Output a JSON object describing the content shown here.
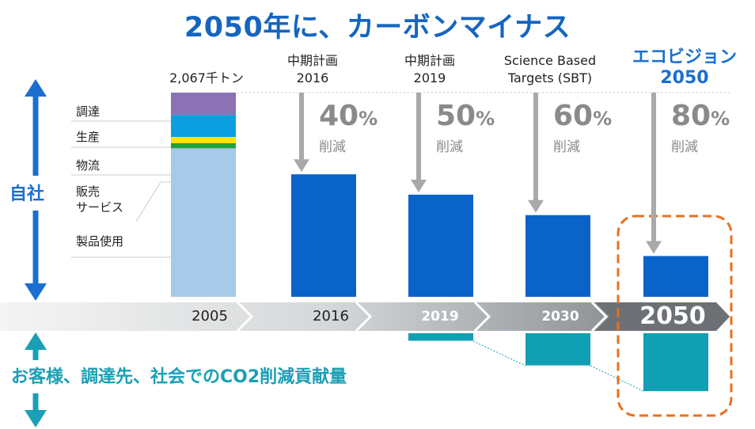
{
  "title": "2050年に、カーボンマイナス",
  "labels": {
    "base_total": "2,067千トン",
    "plan2016": [
      "中期計画",
      "2016"
    ],
    "plan2019": [
      "中期計画",
      "2019"
    ],
    "sbt": [
      "Science Based",
      "Targets (SBT)"
    ],
    "vision": [
      "エコビジョン",
      "2050"
    ],
    "reduction_word": "削減",
    "percent_sign": "%",
    "own_company": "自社",
    "contribution": "お客様、調達先、社会でのCO2削減貢献量"
  },
  "colors": {
    "title": "#1565c0",
    "bar": "#0a63c9",
    "contribution": "#119fb3",
    "procurement": "#8a72b5",
    "production": "#0aa0e0",
    "logistics": "#ffe400",
    "sales_service": "#1fa33a",
    "product_use": "#a7c9ea",
    "arrow_gray": "#a9a9a9",
    "highlight_frame": "#e8711e"
  },
  "chart_data": {
    "type": "bar",
    "categories": [
      "2005",
      "2016",
      "2019",
      "2030",
      "2050"
    ],
    "base_breakdown": [
      {
        "name": "調達",
        "value": 227
      },
      {
        "name": "生産",
        "value": 223
      },
      {
        "name": "物流",
        "value": 62
      },
      {
        "name": "販売\nサービス",
        "value": 52
      },
      {
        "name": "製品使用",
        "value": 1503
      }
    ],
    "values": [
      2067,
      1240,
      1034,
      827,
      413
    ],
    "reductions": [
      null,
      40,
      50,
      60,
      80
    ],
    "contribution_values": [
      0,
      0,
      50,
      214,
      385
    ],
    "unit": "千トン",
    "ylim": [
      0,
      2067
    ],
    "legend": "left"
  }
}
